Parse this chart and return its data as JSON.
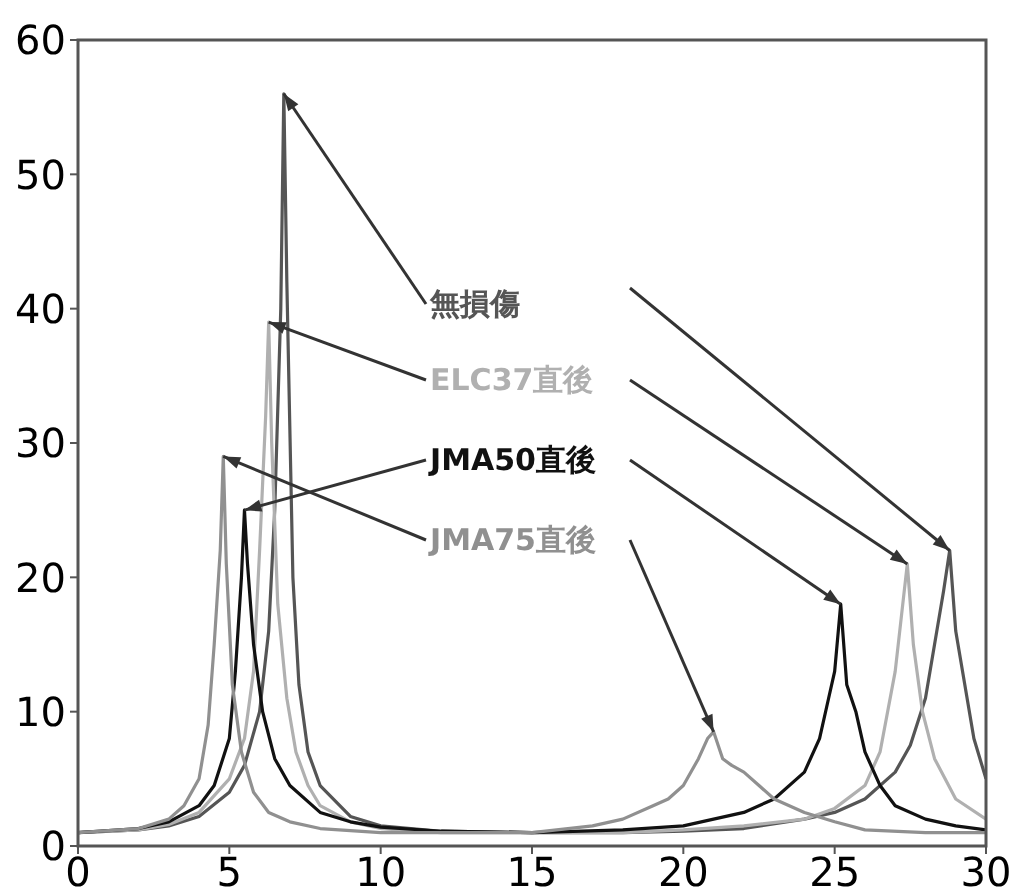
{
  "chart_data": {
    "type": "line",
    "xlim": [
      0,
      30
    ],
    "xticks": [
      0,
      5,
      10,
      15,
      20,
      25,
      30
    ],
    "ylim": [
      0,
      60
    ],
    "yticks": [
      0,
      10,
      20,
      30,
      40,
      50,
      60
    ],
    "grid": false,
    "marker": "none",
    "line_style": "solid",
    "series": [
      {
        "name": "無損傷",
        "color": "#555555",
        "x": [
          0,
          2,
          3,
          4,
          5,
          5.5,
          6,
          6.3,
          6.5,
          6.7,
          6.8,
          6.9,
          7.1,
          7.3,
          7.6,
          8,
          9,
          10,
          12,
          15,
          18,
          20,
          22,
          24,
          25,
          26,
          27,
          27.5,
          28,
          28.3,
          28.6,
          28.8,
          29,
          29.3,
          29.6,
          30
        ],
        "values": [
          1,
          1.2,
          1.5,
          2.2,
          4,
          6,
          10,
          16,
          25,
          40,
          56,
          42,
          20,
          12,
          7,
          4.5,
          2.2,
          1.5,
          1.1,
          1,
          1,
          1.1,
          1.3,
          2,
          2.5,
          3.5,
          5.5,
          7.5,
          11,
          15,
          19,
          22,
          16,
          12,
          8,
          5
        ]
      },
      {
        "name": "ELC37直後",
        "color": "#b0b0b0",
        "x": [
          0,
          2,
          3,
          4,
          5,
          5.5,
          5.8,
          6,
          6.2,
          6.3,
          6.4,
          6.6,
          6.9,
          7.2,
          7.6,
          8,
          9,
          10,
          12,
          15,
          18,
          20,
          22,
          24,
          25,
          26,
          26.5,
          27,
          27.2,
          27.4,
          27.6,
          27.9,
          28.3,
          29,
          30
        ],
        "values": [
          1,
          1.2,
          1.6,
          2.5,
          5,
          8,
          13,
          22,
          32,
          39,
          30,
          18,
          11,
          7,
          4.5,
          3,
          1.8,
          1.3,
          1,
          1,
          1,
          1.2,
          1.5,
          2,
          2.8,
          4.5,
          7,
          13,
          17,
          21,
          15,
          10,
          6.5,
          3.5,
          2
        ]
      },
      {
        "name": "JMA50直後",
        "color": "#111111",
        "x": [
          0,
          2,
          3,
          4,
          4.5,
          5,
          5.2,
          5.4,
          5.5,
          5.6,
          5.8,
          6.1,
          6.5,
          7,
          8,
          9,
          10,
          12,
          15,
          18,
          20,
          22,
          23,
          24,
          24.5,
          24.8,
          25,
          25.2,
          25.4,
          25.7,
          26,
          26.5,
          27,
          28,
          29,
          30
        ],
        "values": [
          1,
          1.3,
          1.8,
          3,
          4.5,
          8,
          13,
          20,
          25,
          21,
          15,
          10,
          6.5,
          4.5,
          2.5,
          1.8,
          1.4,
          1.1,
          1,
          1.2,
          1.5,
          2.5,
          3.5,
          5.5,
          8,
          11,
          13,
          18,
          12,
          10,
          7,
          4.5,
          3,
          2,
          1.5,
          1.2
        ]
      },
      {
        "name": "JMA75直後",
        "color": "#909090",
        "x": [
          0,
          2,
          3,
          3.5,
          4,
          4.3,
          4.5,
          4.7,
          4.8,
          4.9,
          5.1,
          5.4,
          5.8,
          6.3,
          7,
          8,
          10,
          12,
          15,
          17,
          18,
          19,
          19.5,
          20,
          20.5,
          20.8,
          21,
          21.3,
          21.6,
          22,
          22.5,
          23,
          24,
          25,
          26,
          28,
          30
        ],
        "values": [
          1,
          1.3,
          2,
          3,
          5,
          9,
          15,
          22,
          29,
          21,
          12,
          7,
          4,
          2.5,
          1.8,
          1.3,
          1,
          1,
          1,
          1.5,
          2,
          3,
          3.5,
          4.5,
          6.5,
          8,
          8.5,
          6.5,
          6,
          5.5,
          4.5,
          3.5,
          2.5,
          1.8,
          1.2,
          1,
          1
        ]
      }
    ]
  }
}
